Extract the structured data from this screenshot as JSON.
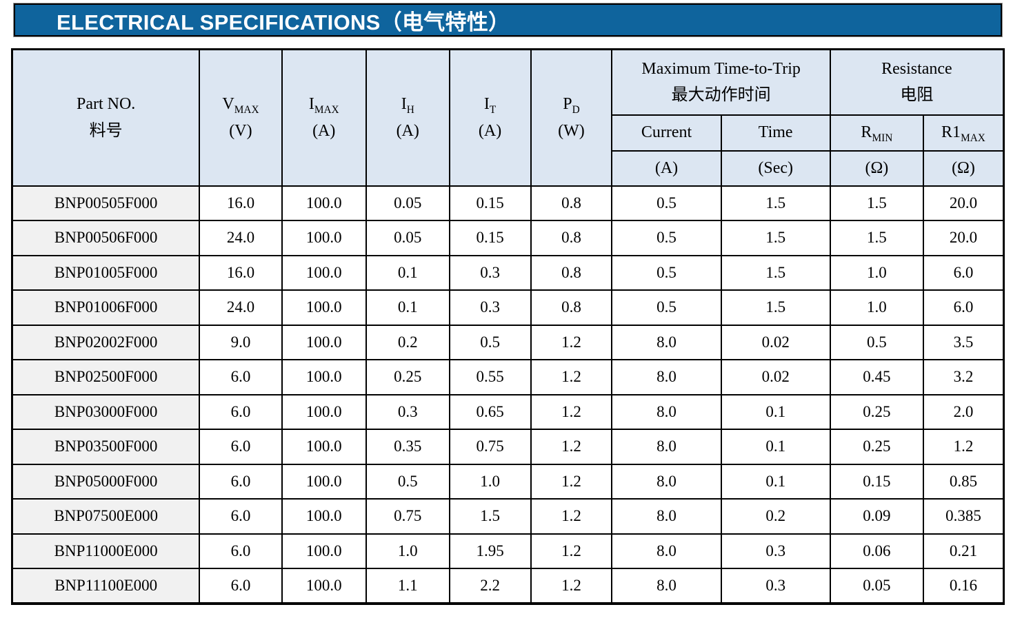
{
  "banner": {
    "title_en": "ELECTRICAL SPECIFICATIONS",
    "title_zh": "（电气特性）",
    "bg_color": "#0F649D",
    "text_color": "#FFFFFF"
  },
  "table": {
    "colors": {
      "header_bg": "#DCE6F2",
      "part_col_bg": "#F1F1F1",
      "data_bg": "#FFFFFF",
      "border": "#000000"
    },
    "header": {
      "part_no": {
        "en": "Part NO.",
        "zh": "料号"
      },
      "vmax": {
        "base": "V",
        "sub": "MAX",
        "unit": "(V)"
      },
      "imax": {
        "base": "I",
        "sub": "MAX",
        "unit": "(A)"
      },
      "ih": {
        "base": "I",
        "sub": "H",
        "unit": "(A)"
      },
      "it": {
        "base": "I",
        "sub": "T",
        "unit": "(A)"
      },
      "pd": {
        "base": "P",
        "sub": "D",
        "unit": "(W)"
      },
      "trip_group": {
        "en": "Maximum Time-to-Trip",
        "zh": "最大动作时间"
      },
      "trip_current": {
        "label": "Current",
        "unit": "(A)"
      },
      "trip_time": {
        "label": "Time",
        "unit": "(Sec)"
      },
      "resistance_group": {
        "en": "Resistance",
        "zh": "电阻"
      },
      "rmin": {
        "base": "R",
        "sub": "MIN",
        "unit": "(Ω)"
      },
      "r1max": {
        "base": "R1",
        "sub": "MAX",
        "unit": "(Ω)"
      }
    },
    "rows": [
      [
        "BNP00505F000",
        "16.0",
        "100.0",
        "0.05",
        "0.15",
        "0.8",
        "0.5",
        "1.5",
        "1.5",
        "20.0"
      ],
      [
        "BNP00506F000",
        "24.0",
        "100.0",
        "0.05",
        "0.15",
        "0.8",
        "0.5",
        "1.5",
        "1.5",
        "20.0"
      ],
      [
        "BNP01005F000",
        "16.0",
        "100.0",
        "0.1",
        "0.3",
        "0.8",
        "0.5",
        "1.5",
        "1.0",
        "6.0"
      ],
      [
        "BNP01006F000",
        "24.0",
        "100.0",
        "0.1",
        "0.3",
        "0.8",
        "0.5",
        "1.5",
        "1.0",
        "6.0"
      ],
      [
        "BNP02002F000",
        "9.0",
        "100.0",
        "0.2",
        "0.5",
        "1.2",
        "8.0",
        "0.02",
        "0.5",
        "3.5"
      ],
      [
        "BNP02500F000",
        "6.0",
        "100.0",
        "0.25",
        "0.55",
        "1.2",
        "8.0",
        "0.02",
        "0.45",
        "3.2"
      ],
      [
        "BNP03000F000",
        "6.0",
        "100.0",
        "0.3",
        "0.65",
        "1.2",
        "8.0",
        "0.1",
        "0.25",
        "2.0"
      ],
      [
        "BNP03500F000",
        "6.0",
        "100.0",
        "0.35",
        "0.75",
        "1.2",
        "8.0",
        "0.1",
        "0.25",
        "1.2"
      ],
      [
        "BNP05000F000",
        "6.0",
        "100.0",
        "0.5",
        "1.0",
        "1.2",
        "8.0",
        "0.1",
        "0.15",
        "0.85"
      ],
      [
        "BNP07500E000",
        "6.0",
        "100.0",
        "0.75",
        "1.5",
        "1.2",
        "8.0",
        "0.2",
        "0.09",
        "0.385"
      ],
      [
        "BNP11000E000",
        "6.0",
        "100.0",
        "1.0",
        "1.95",
        "1.2",
        "8.0",
        "0.3",
        "0.06",
        "0.21"
      ],
      [
        "BNP11100E000",
        "6.0",
        "100.0",
        "1.1",
        "2.2",
        "1.2",
        "8.0",
        "0.3",
        "0.05",
        "0.16"
      ]
    ]
  }
}
